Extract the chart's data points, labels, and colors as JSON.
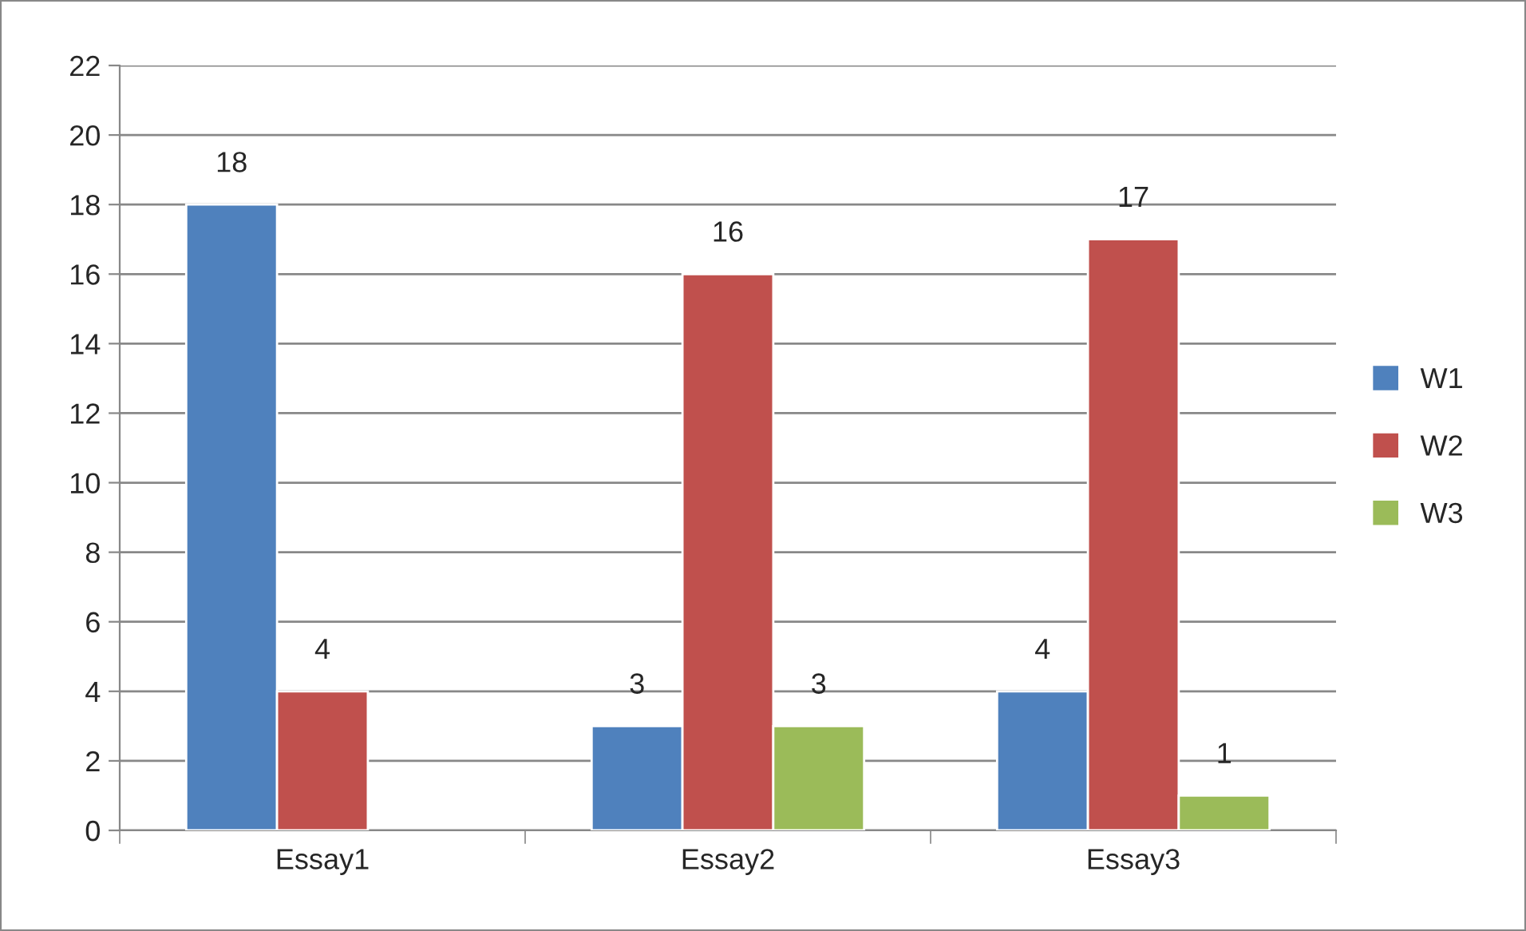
{
  "chart_data": {
    "type": "bar",
    "categories": [
      "Essay1",
      "Essay2",
      "Essay3"
    ],
    "series": [
      {
        "name": "W1",
        "color": "#4f81bd",
        "values": [
          18,
          3,
          4
        ],
        "value_labels": [
          "18",
          "3",
          "4"
        ]
      },
      {
        "name": "W2",
        "color": "#c0504d",
        "values": [
          4,
          16,
          17
        ],
        "value_labels": [
          "4",
          "16",
          "17"
        ]
      },
      {
        "name": "W3",
        "color": "#9bbb59",
        "values": [
          null,
          3,
          1
        ],
        "value_labels": [
          null,
          "3",
          "1"
        ]
      }
    ],
    "ylim": [
      0,
      22
    ],
    "yticks": [
      0,
      2,
      4,
      6,
      8,
      10,
      12,
      14,
      16,
      18,
      20,
      22
    ],
    "grid": "y",
    "legend": "right"
  }
}
